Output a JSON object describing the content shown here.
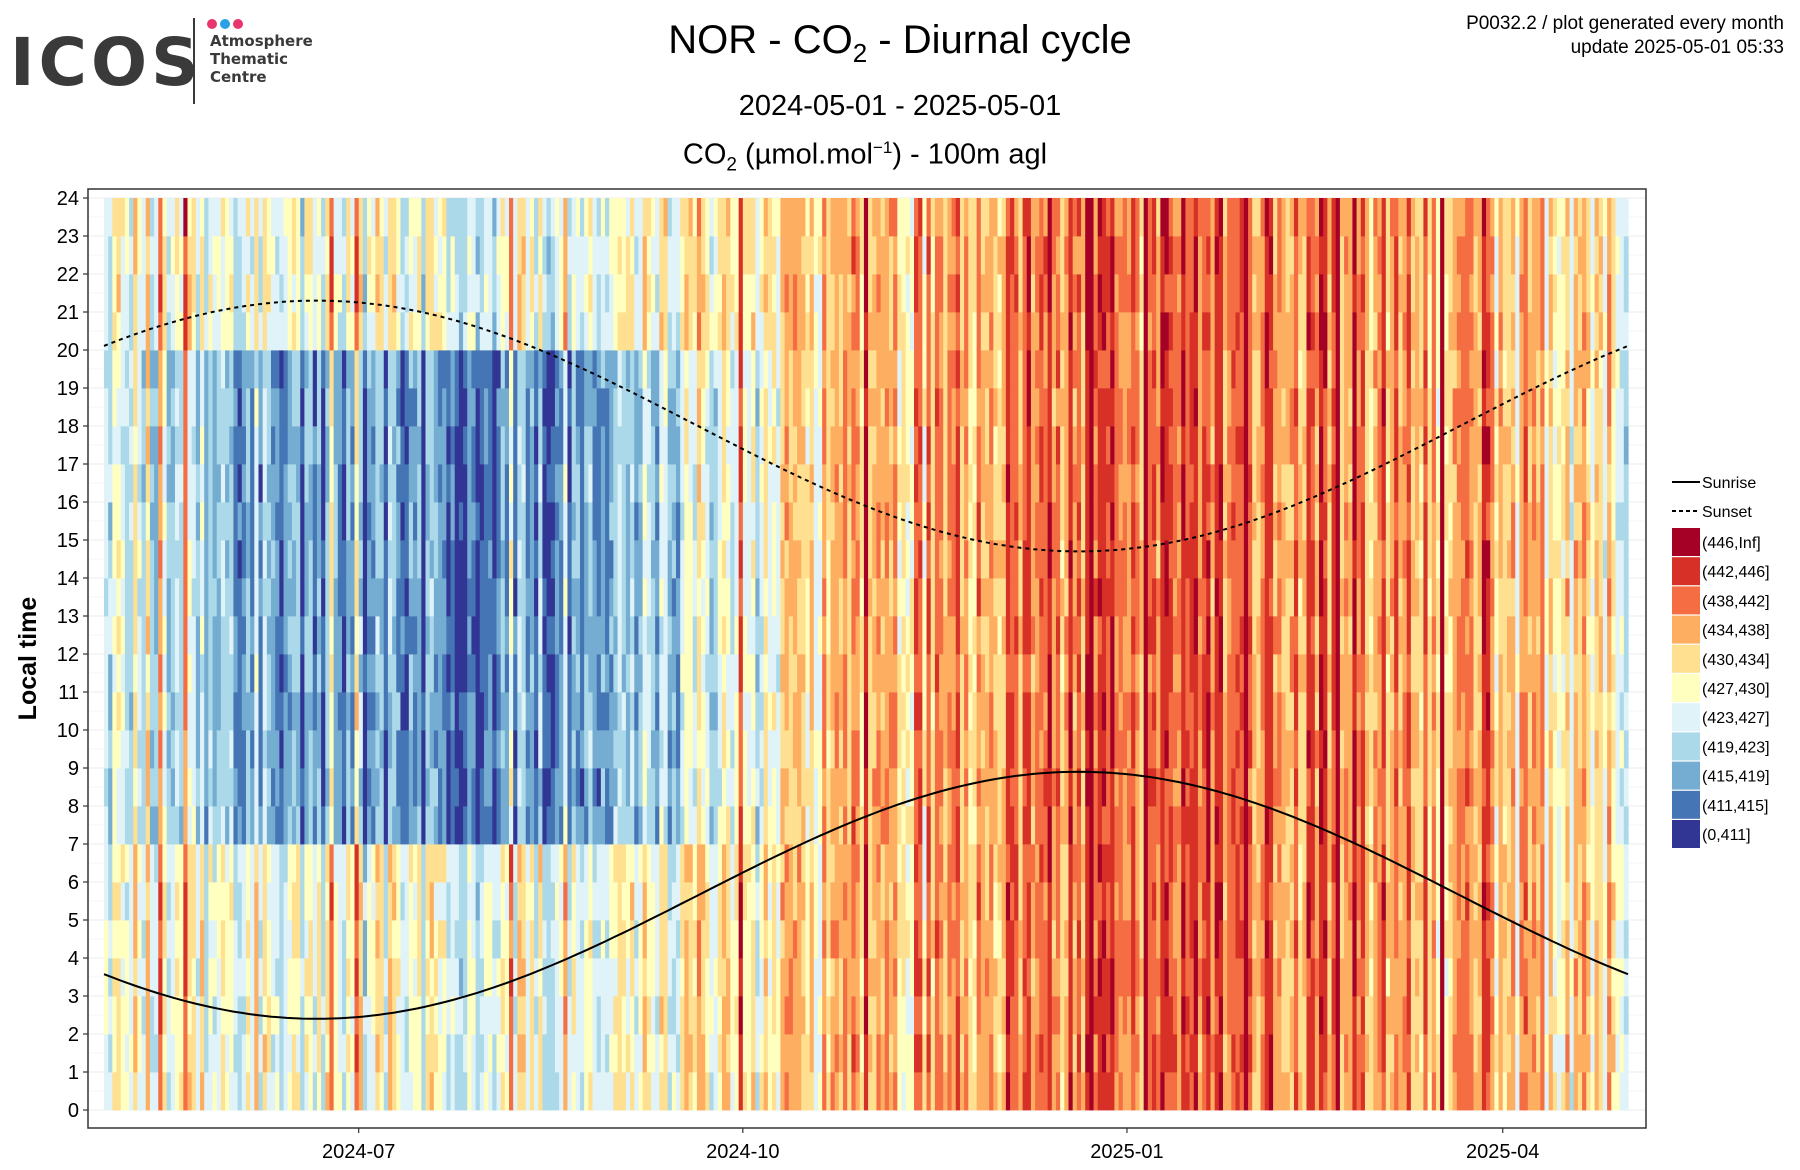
{
  "header": {
    "logo_word": "ICOS",
    "logo_lines": [
      "Atmosphere",
      "Thematic",
      "Centre"
    ],
    "logo_dot_colors": [
      "#e8356d",
      "#2b9fe8",
      "#e8356d"
    ],
    "title_parts": [
      "NOR - CO",
      "2",
      " - Diurnal cycle"
    ],
    "date_range": "2024-05-01 - 2025-05-01",
    "unit_parts": [
      "CO",
      "2",
      " (µmol.mol",
      "−1",
      ") - 100m agl"
    ],
    "meta_line1": "P0032.2 / plot generated every month",
    "meta_line2": "update  2025-05-01 05:33"
  },
  "chart_data": {
    "type": "heatmap",
    "title": "NOR - CO2 - Diurnal cycle",
    "subtitle": "2024-05-01 - 2025-05-01",
    "value_label": "CO2 (µmol.mol−1) - 100m agl",
    "ylabel": "Local time",
    "xlabel": "",
    "x_range": [
      "2024-05-01",
      "2025-05-01"
    ],
    "y_range": [
      0,
      24
    ],
    "y_ticks": [
      0,
      1,
      2,
      3,
      4,
      5,
      6,
      7,
      8,
      9,
      10,
      11,
      12,
      13,
      14,
      15,
      16,
      17,
      18,
      19,
      20,
      21,
      22,
      23,
      24
    ],
    "x_ticks": [
      {
        "date": "2024-07-01",
        "label": "2024-07"
      },
      {
        "date": "2024-10-01",
        "label": "2024-10"
      },
      {
        "date": "2025-01-01",
        "label": "2025-01"
      },
      {
        "date": "2025-04-01",
        "label": "2025-04"
      }
    ],
    "grid": true,
    "legend_position": "right",
    "lines": [
      {
        "name": "Sunrise",
        "style": "solid",
        "color": "#000000",
        "x": [
          "2024-05-01",
          "2024-06-21",
          "2024-09-22",
          "2024-12-21",
          "2025-03-20",
          "2025-05-01"
        ],
        "y": [
          3.8,
          2.4,
          6.0,
          8.9,
          6.0,
          3.8
        ]
      },
      {
        "name": "Sunset",
        "style": "dashed",
        "color": "#000000",
        "x": [
          "2024-05-01",
          "2024-06-21",
          "2024-09-22",
          "2024-12-21",
          "2025-03-20",
          "2025-05-01"
        ],
        "y": [
          19.8,
          21.3,
          18.0,
          14.7,
          18.0,
          19.8
        ]
      }
    ],
    "color_scale": [
      {
        "label": "(446,Inf]",
        "color": "#a50026"
      },
      {
        "label": "(442,446]",
        "color": "#d73027"
      },
      {
        "label": "(438,442]",
        "color": "#f46d43"
      },
      {
        "label": "(434,438]",
        "color": "#fdae61"
      },
      {
        "label": "(430,434]",
        "color": "#fee090"
      },
      {
        "label": "(427,430]",
        "color": "#ffffbf"
      },
      {
        "label": "(423,427]",
        "color": "#e0f3f8"
      },
      {
        "label": "(419,423]",
        "color": "#abd9e9"
      },
      {
        "label": "(415,419]",
        "color": "#74add1"
      },
      {
        "label": "(411,415]",
        "color": "#4575b4"
      },
      {
        "label": "(0,411]",
        "color": "#313695"
      }
    ],
    "heatmap_summary": {
      "resolution": "daily columns, hourly blocks",
      "pattern": "Low CO2 (blue classes) during summer daytime 2024-05 to 2024-10; high CO2 (orange/red classes) from 2024-10 through 2025-04 at all hours; night-time hours in summer mostly (427,434] to (434,438]."
    }
  }
}
